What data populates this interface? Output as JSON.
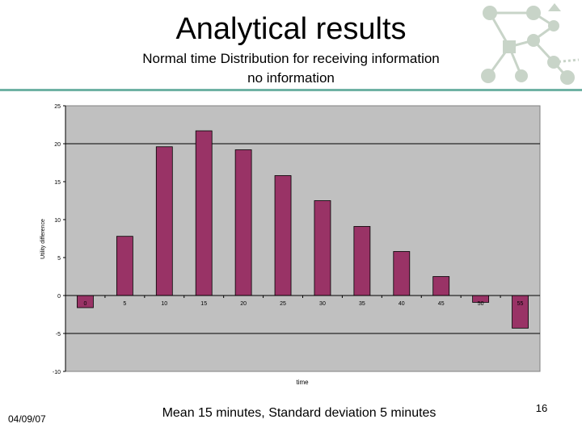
{
  "slide": {
    "title": "Analytical results",
    "subtitle_line1": "Normal time Distribution for receiving information",
    "subtitle_line2": "no information",
    "date": "04/09/07",
    "caption": "Mean 15 minutes, Standard deviation 5 minutes",
    "page_number": "16"
  },
  "colors": {
    "bar": "#993366",
    "plot_bg": "#c0c0c0",
    "rule": "#6fb2a4",
    "logo": "#c8d4c8"
  },
  "logo": {
    "icon": "network-diagram-logo"
  },
  "chart_data": {
    "type": "bar",
    "title": "",
    "xlabel": "time",
    "ylabel": "Utility difference",
    "categories": [
      "0",
      "5",
      "10",
      "15",
      "20",
      "25",
      "30",
      "35",
      "40",
      "45",
      "50",
      "55"
    ],
    "values": [
      -1.6,
      7.8,
      19.6,
      21.7,
      19.2,
      15.8,
      12.5,
      9.1,
      5.8,
      2.5,
      -0.9,
      -4.3
    ],
    "ylim": [
      -10,
      25
    ],
    "yticks": [
      "-10",
      "-5",
      "0",
      "5",
      "10",
      "15",
      "20",
      "25"
    ],
    "ytick_values": [
      -10,
      -5,
      0,
      5,
      10,
      15,
      20,
      25
    ],
    "gridlines": [
      20,
      -5
    ],
    "grid": true,
    "legend": "none"
  }
}
